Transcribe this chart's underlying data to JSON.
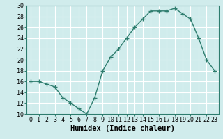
{
  "x": [
    0,
    1,
    2,
    3,
    4,
    5,
    6,
    7,
    8,
    9,
    10,
    11,
    12,
    13,
    14,
    15,
    16,
    17,
    18,
    19,
    20,
    21,
    22,
    23
  ],
  "y": [
    16,
    16,
    15.5,
    15,
    13,
    12,
    11,
    10,
    13,
    18,
    20.5,
    22,
    24,
    26,
    27.5,
    29,
    29,
    29,
    29.5,
    28.5,
    27.5,
    24,
    20,
    18
  ],
  "line_color": "#2e7d6e",
  "marker": "+",
  "marker_size": 4,
  "marker_linewidth": 1.0,
  "line_width": 1.0,
  "background_color": "#d0ecec",
  "grid_color": "#ffffff",
  "xlabel": "Humidex (Indice chaleur)",
  "xlabel_fontsize": 7.5,
  "xlabel_fontweight": "bold",
  "ylim": [
    10,
    30
  ],
  "xlim": [
    -0.5,
    23.5
  ],
  "yticks": [
    10,
    12,
    14,
    16,
    18,
    20,
    22,
    24,
    26,
    28,
    30
  ],
  "xticks": [
    0,
    1,
    2,
    3,
    4,
    5,
    6,
    7,
    8,
    9,
    10,
    11,
    12,
    13,
    14,
    15,
    16,
    17,
    18,
    19,
    20,
    21,
    22,
    23
  ],
  "tick_fontsize": 6,
  "spine_color": "#2e7d6e"
}
